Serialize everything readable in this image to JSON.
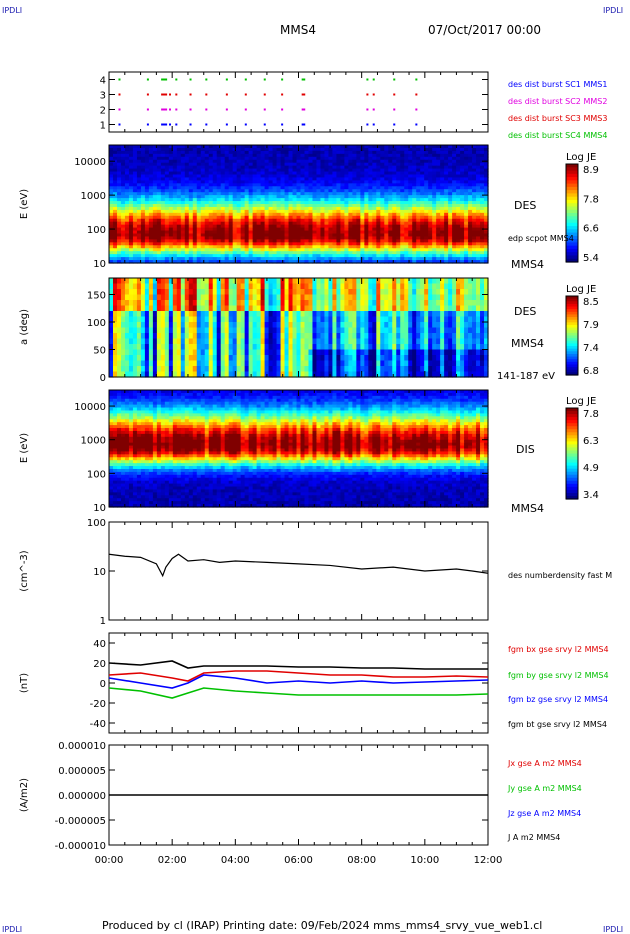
{
  "header": {
    "corner_left": "IPDLI",
    "corner_right": "IPDLI",
    "corner_bottom_left": "IPDLI",
    "corner_bottom_right": "IPDLI",
    "spacecraft": "MMS4",
    "date": "07/Oct/2017 00:00"
  },
  "footer": {
    "text": "Produced by cl (IRAP)   Printing date: 09/Feb/2024   mms_mms4_srvy_vue_web1.cl"
  },
  "colors": {
    "blue": "#0000ff",
    "magenta": "#e000e0",
    "red": "#e00000",
    "green": "#00c000",
    "black": "#000000"
  },
  "time_axis": {
    "ticks": [
      "00:00",
      "02:00",
      "04:00",
      "06:00",
      "08:00",
      "10:00",
      "12:00"
    ],
    "range_hours": [
      0,
      12
    ]
  },
  "chart_data": [
    {
      "type": "scatter",
      "panel": "burst",
      "yticks": [
        "1",
        "2",
        "3",
        "4"
      ],
      "ylim": [
        0.5,
        4.5
      ],
      "legend": [
        {
          "label": "des dist burst SC1 MMS1",
          "color": "#0000ff"
        },
        {
          "label": "des dist burst SC2 MMS2",
          "color": "#e000e0"
        },
        {
          "label": "des dist burst SC3 MMS3",
          "color": "#e00000"
        },
        {
          "label": "des dist burst SC4 MMS4",
          "color": "#00c000"
        }
      ],
      "series": [
        {
          "level": 4,
          "color": "#00c000",
          "x": [
            0.3,
            1.2,
            1.65,
            1.75,
            2.1,
            2.55,
            3.05,
            3.7,
            4.3,
            4.9,
            5.45,
            6.1,
            6.15,
            8.15,
            8.35,
            9.0,
            9.7
          ]
        },
        {
          "level": 3,
          "color": "#e00000",
          "x": [
            0.3,
            1.2,
            1.65,
            1.9,
            2.1,
            2.55,
            3.05,
            3.7,
            4.3,
            4.9,
            5.45,
            6.1,
            6.15,
            8.15,
            8.35,
            9.0,
            9.7
          ]
        },
        {
          "level": 2,
          "color": "#e000e0",
          "x": [
            0.3,
            1.2,
            1.65,
            1.9,
            2.1,
            2.55,
            3.05,
            3.7,
            4.3,
            4.9,
            5.45,
            6.1,
            6.15,
            8.15,
            8.35,
            9.0,
            9.7
          ]
        },
        {
          "level": 1,
          "color": "#0000ff",
          "x": [
            0.3,
            1.2,
            1.65,
            1.9,
            2.1,
            2.55,
            3.05,
            3.7,
            4.3,
            4.9,
            5.45,
            6.1,
            6.15,
            8.15,
            8.35,
            9.0,
            9.7
          ]
        }
      ]
    },
    {
      "type": "heatmap",
      "panel": "des-energy",
      "ylabel": "E (eV)",
      "yticks": [
        "10000",
        "1000",
        "100",
        "10"
      ],
      "ylim_log": [
        10,
        30000
      ],
      "right_labels": [
        "DES",
        "edp scpot MMS4",
        "MMS4"
      ],
      "colorbar": {
        "title": "Log JE",
        "ticks": [
          "8.9",
          "7.8",
          "6.6",
          "5.4"
        ],
        "range": [
          5.4,
          8.9
        ]
      },
      "profile": {
        "peak_eV": 70,
        "peak_value": 8.9,
        "min_value": 5.4
      }
    },
    {
      "type": "heatmap",
      "panel": "des-pitch",
      "ylabel": "a (deg)",
      "yticks": [
        "150",
        "100",
        "50",
        "0"
      ],
      "ylim": [
        0,
        180
      ],
      "right_labels": [
        "DES",
        "MMS4",
        "141-187 eV"
      ],
      "colorbar": {
        "title": "Log JE",
        "ticks": [
          "8.5",
          "7.9",
          "7.4",
          "6.8"
        ],
        "range": [
          6.8,
          8.5
        ]
      }
    },
    {
      "type": "heatmap",
      "panel": "dis-energy",
      "ylabel": "E (eV)",
      "yticks": [
        "10000",
        "1000",
        "100",
        "10"
      ],
      "ylim_log": [
        10,
        30000
      ],
      "right_labels": [
        "DIS",
        "MMS4"
      ],
      "colorbar": {
        "title": "Log JE",
        "ticks": [
          "7.8",
          "6.3",
          "4.9",
          "3.4"
        ],
        "range": [
          3.4,
          7.8
        ]
      },
      "profile": {
        "peak_eV": 700,
        "peak_value": 7.8,
        "min_value": 3.4
      }
    },
    {
      "type": "line",
      "panel": "density",
      "ylabel": "(cm^-3)",
      "yticks": [
        "100",
        "10",
        "1"
      ],
      "ylim_log": [
        1,
        100
      ],
      "series": [
        {
          "name": "des numberdensity fast M",
          "color": "#000000",
          "x": [
            0,
            0.5,
            1.0,
            1.5,
            1.7,
            1.8,
            2.0,
            2.2,
            2.5,
            3.0,
            3.5,
            4.0,
            5.0,
            6.0,
            7.0,
            8.0,
            9.0,
            10.0,
            11.0,
            11.5,
            12.0
          ],
          "y": [
            22,
            20,
            19,
            14,
            8,
            12,
            18,
            22,
            16,
            17,
            15,
            16,
            15,
            14,
            13,
            11,
            12,
            10,
            11,
            10,
            9
          ]
        }
      ]
    },
    {
      "type": "line",
      "panel": "fgm",
      "ylabel": "(nT)",
      "yticks": [
        "40",
        "20",
        "0",
        "-20",
        "-40"
      ],
      "ylim": [
        -50,
        50
      ],
      "series": [
        {
          "name": "fgm bx gse srvy l2 MMS4",
          "color": "#e00000",
          "x": [
            0,
            1,
            2,
            2.5,
            3,
            4,
            5,
            6,
            7,
            8,
            9,
            10,
            11,
            12
          ],
          "y": [
            8,
            10,
            5,
            2,
            10,
            12,
            12,
            10,
            8,
            8,
            6,
            6,
            7,
            6
          ]
        },
        {
          "name": "fgm by gse srvy l2 MMS4",
          "color": "#00c000",
          "x": [
            0,
            1,
            2,
            2.5,
            3,
            4,
            5,
            6,
            7,
            8,
            9,
            10,
            11,
            12
          ],
          "y": [
            -5,
            -8,
            -15,
            -10,
            -5,
            -8,
            -10,
            -12,
            -12,
            -12,
            -12,
            -12,
            -12,
            -11
          ]
        },
        {
          "name": "fgm bz gse srvy l2 MMS4",
          "color": "#0000ff",
          "x": [
            0,
            1,
            2,
            2.5,
            3,
            4,
            5,
            6,
            7,
            8,
            9,
            10,
            11,
            12
          ],
          "y": [
            5,
            0,
            -5,
            0,
            8,
            5,
            0,
            2,
            0,
            2,
            0,
            1,
            2,
            3
          ]
        },
        {
          "name": "fgm bt gse srvy l2 MMS4",
          "color": "#000000",
          "x": [
            0,
            1,
            2,
            2.5,
            3,
            4,
            5,
            6,
            7,
            8,
            9,
            10,
            11,
            12
          ],
          "y": [
            20,
            18,
            22,
            15,
            17,
            17,
            17,
            16,
            16,
            15,
            15,
            14,
            14,
            14
          ]
        }
      ]
    },
    {
      "type": "line",
      "panel": "current",
      "ylabel": "(A/m2)",
      "yticks": [
        "0.000010",
        "0.000005",
        "0.000000",
        "-0.000005",
        "-0.000010"
      ],
      "ylim": [
        -1e-05,
        1e-05
      ],
      "series": [
        {
          "name": "Jx gse A m2 MMS4",
          "color": "#e00000"
        },
        {
          "name": "Jy gse A m2 MMS4",
          "color": "#00c000"
        },
        {
          "name": "Jz gse A m2 MMS4",
          "color": "#0000ff"
        },
        {
          "name": "J A m2 MMS4",
          "color": "#000000"
        }
      ],
      "x": [
        0,
        2,
        4,
        6,
        8,
        10,
        12
      ],
      "y": [
        0,
        0,
        0,
        0,
        0,
        0,
        0
      ]
    }
  ]
}
